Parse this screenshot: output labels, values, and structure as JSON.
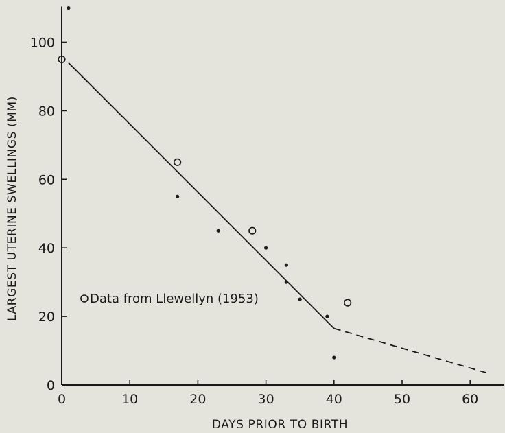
{
  "chart_data": {
    "type": "scatter",
    "title": "",
    "xlabel": "DAYS PRIOR TO BIRTH",
    "ylabel": "LARGEST UTERINE SWELLINGS (MM)",
    "xlim": [
      0,
      65
    ],
    "ylim": [
      0,
      110
    ],
    "x_ticks": [
      0,
      10,
      20,
      30,
      40,
      50,
      60
    ],
    "y_ticks": [
      0,
      20,
      40,
      60,
      80,
      100
    ],
    "x_tick_labels": [
      "0",
      "10",
      "20",
      "30",
      "40",
      "50",
      "60"
    ],
    "y_tick_labels": [
      "0",
      "20",
      "40",
      "60",
      "80",
      "100"
    ],
    "series": [
      {
        "marker": "filled-dot",
        "points": [
          {
            "x": 1,
            "y": 110
          },
          {
            "x": 17,
            "y": 55
          },
          {
            "x": 23,
            "y": 45
          },
          {
            "x": 30,
            "y": 40
          },
          {
            "x": 33,
            "y": 35
          },
          {
            "x": 33,
            "y": 30
          },
          {
            "x": 35,
            "y": 25
          },
          {
            "x": 39,
            "y": 20
          },
          {
            "x": 40,
            "y": 8
          }
        ]
      },
      {
        "name": "Data from Llewellyn (1953)",
        "marker": "open-circle",
        "points": [
          {
            "x": 0,
            "y": 95
          },
          {
            "x": 17,
            "y": 65
          },
          {
            "x": 28,
            "y": 45
          },
          {
            "x": 42,
            "y": 24
          }
        ]
      }
    ],
    "fit_lines": [
      {
        "style": "solid",
        "points": [
          {
            "x": 1,
            "y": 94
          },
          {
            "x": 40,
            "y": 16.5
          }
        ]
      },
      {
        "style": "dashed",
        "points": [
          {
            "x": 40,
            "y": 16.5
          },
          {
            "x": 62.5,
            "y": 3.5
          }
        ]
      }
    ],
    "legend": {
      "position": "lower-left",
      "text": "Data from Llewellyn (1953)"
    },
    "grid": false,
    "colors": {
      "background": "#e4e4dc",
      "ink": "#1a1a1a"
    }
  }
}
